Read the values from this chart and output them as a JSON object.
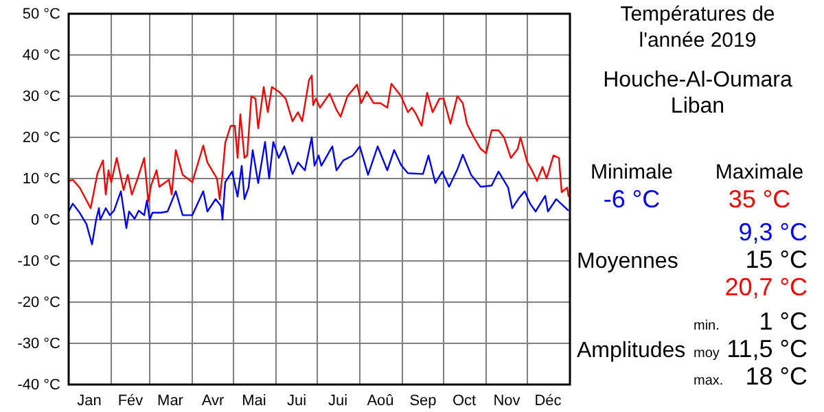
{
  "chart_data": {
    "type": "line",
    "title": "Températures de l'année 2019",
    "subtitle": "Houche-Al-Oumara Liban",
    "xlim": [
      "2019-01-01",
      "2020-01-01"
    ],
    "xticks": [
      {
        "value": "2019-01-01",
        "label": null
      },
      {
        "value": "2019-01-16",
        "label": "Jan"
      },
      {
        "value": "2019-02-01",
        "label": null
      },
      {
        "value": "2019-02-15",
        "label": "Fév"
      },
      {
        "value": "2019-03-01",
        "label": null
      },
      {
        "value": "2019-03-16",
        "label": "Mar"
      },
      {
        "value": "2019-04-01",
        "label": null
      },
      {
        "value": "2019-04-16",
        "label": "Avr"
      },
      {
        "value": "2019-05-01",
        "label": null
      },
      {
        "value": "2019-05-16",
        "label": "Mai"
      },
      {
        "value": "2019-06-01",
        "label": null
      },
      {
        "value": "2019-06-16",
        "label": "Jui"
      },
      {
        "value": "2019-07-01",
        "label": null
      },
      {
        "value": "2019-07-16",
        "label": "Jui"
      },
      {
        "value": "2019-08-01",
        "label": null
      },
      {
        "value": "2019-08-16",
        "label": "Aoû"
      },
      {
        "value": "2019-09-01",
        "label": null
      },
      {
        "value": "2019-09-16",
        "label": "Sep"
      },
      {
        "value": "2019-10-01",
        "label": null
      },
      {
        "value": "2019-10-16",
        "label": "Oct"
      },
      {
        "value": "2019-11-01",
        "label": null
      },
      {
        "value": "2019-11-16",
        "label": "Nov"
      },
      {
        "value": "2019-12-01",
        "label": null
      },
      {
        "value": "2019-12-16",
        "label": "Déc"
      },
      {
        "value": "2020-01-01",
        "label": null
      }
    ],
    "ylim": [
      -40,
      50
    ],
    "yticks": [
      {
        "value": -40,
        "label": "-40 °C"
      },
      {
        "value": -30,
        "label": "-30 °C"
      },
      {
        "value": -20,
        "label": "-20 °C"
      },
      {
        "value": -10,
        "label": "-10 °C"
      },
      {
        "value": 0,
        "label": "0 °C"
      },
      {
        "value": 10,
        "label": "10 °C"
      },
      {
        "value": 20,
        "label": "20 °C"
      },
      {
        "value": 30,
        "label": "30 °C"
      },
      {
        "value": 40,
        "label": "40 °C"
      },
      {
        "value": 50,
        "label": "50 °C"
      }
    ],
    "grid": true,
    "marker": "none",
    "line_style": "solid",
    "series": [
      {
        "color": "#0000ff",
        "x": [
          "2019-01-01",
          "2019-01-04",
          "2019-01-09",
          "2019-01-14",
          "2019-01-18",
          "2019-01-21",
          "2019-01-23",
          "2019-01-24",
          "2019-01-28",
          "2019-01-31",
          "2019-02-03",
          "2019-02-08",
          "2019-02-12",
          "2019-02-14",
          "2019-02-18",
          "2019-02-21",
          "2019-02-25",
          "2019-02-27",
          "2019-03-01",
          "2019-03-03",
          "2019-03-09",
          "2019-03-14",
          "2019-03-20",
          "2019-03-25",
          "2019-04-01",
          "2019-04-09",
          "2019-04-12",
          "2019-04-18",
          "2019-04-22",
          "2019-04-23",
          "2019-04-25",
          "2019-04-30",
          "2019-05-04",
          "2019-05-07",
          "2019-05-09",
          "2019-05-12",
          "2019-05-15",
          "2019-05-19",
          "2019-05-24",
          "2019-05-27",
          "2019-05-30",
          "2019-06-03",
          "2019-06-07",
          "2019-06-13",
          "2019-06-17",
          "2019-06-22",
          "2019-06-27",
          "2019-06-29",
          "2019-07-02",
          "2019-07-04",
          "2019-07-12",
          "2019-07-15",
          "2019-07-20",
          "2019-07-27",
          "2019-08-01",
          "2019-08-07",
          "2019-08-14",
          "2019-08-21",
          "2019-08-26",
          "2019-08-31",
          "2019-09-05",
          "2019-09-16",
          "2019-09-20",
          "2019-09-25",
          "2019-09-30",
          "2019-10-05",
          "2019-10-11",
          "2019-10-15",
          "2019-10-21",
          "2019-10-28",
          "2019-11-05",
          "2019-11-10",
          "2019-11-17",
          "2019-11-20",
          "2019-11-25",
          "2019-11-29",
          "2019-12-03",
          "2019-12-07",
          "2019-12-14",
          "2019-12-16",
          "2019-12-22",
          "2019-12-29",
          "2019-12-31"
        ],
        "values": [
          2,
          3.9,
          1.7,
          -1.1,
          -6,
          0,
          2.8,
          0,
          2.8,
          1.1,
          2.2,
          6.9,
          -2,
          2,
          0.2,
          2.2,
          1.1,
          4.7,
          0,
          1.7,
          1.7,
          2,
          6.9,
          1.1,
          1.1,
          6.9,
          2,
          5,
          3.3,
          0,
          9.1,
          11.7,
          5.6,
          13.1,
          5,
          7.8,
          16.9,
          8.9,
          18.9,
          10,
          18.9,
          15,
          17.8,
          11.1,
          13.9,
          12,
          20,
          13.1,
          15.6,
          13.1,
          17.8,
          12,
          14.4,
          15.6,
          17.8,
          10.9,
          17.8,
          12,
          16.9,
          13.3,
          11.3,
          11.1,
          15.6,
          8.9,
          11.7,
          8,
          12.2,
          15.8,
          10.9,
          8,
          8.3,
          11.7,
          7.8,
          2.8,
          5.3,
          6.9,
          3.9,
          2,
          5.8,
          2,
          5,
          2.8,
          2.2
        ]
      },
      {
        "color": "#ff0000",
        "x": [
          "2019-01-01",
          "2019-01-04",
          "2019-01-09",
          "2019-01-17",
          "2019-01-22",
          "2019-01-26",
          "2019-01-28",
          "2019-01-30",
          "2019-02-01",
          "2019-02-05",
          "2019-02-10",
          "2019-02-13",
          "2019-02-16",
          "2019-02-20",
          "2019-02-25",
          "2019-02-28",
          "2019-03-02",
          "2019-03-06",
          "2019-03-08",
          "2019-03-15",
          "2019-03-17",
          "2019-03-20",
          "2019-03-25",
          "2019-04-01",
          "2019-04-09",
          "2019-04-12",
          "2019-04-19",
          "2019-04-21",
          "2019-04-23",
          "2019-04-25",
          "2019-04-29",
          "2019-05-02",
          "2019-05-04",
          "2019-05-06",
          "2019-05-09",
          "2019-05-11",
          "2019-05-14",
          "2019-05-17",
          "2019-05-19",
          "2019-05-23",
          "2019-05-26",
          "2019-05-29",
          "2019-06-03",
          "2019-06-08",
          "2019-06-13",
          "2019-06-17",
          "2019-06-20",
          "2019-06-25",
          "2019-06-27",
          "2019-06-28",
          "2019-06-30",
          "2019-07-03",
          "2019-07-10",
          "2019-07-15",
          "2019-07-18",
          "2019-07-23",
          "2019-07-30",
          "2019-08-02",
          "2019-08-06",
          "2019-08-11",
          "2019-08-16",
          "2019-08-21",
          "2019-08-24",
          "2019-08-31",
          "2019-09-05",
          "2019-09-08",
          "2019-09-11",
          "2019-09-15",
          "2019-09-19",
          "2019-09-23",
          "2019-09-28",
          "2019-10-01",
          "2019-10-06",
          "2019-10-11",
          "2019-10-15",
          "2019-10-18",
          "2019-10-23",
          "2019-10-28",
          "2019-11-01",
          "2019-11-05",
          "2019-11-10",
          "2019-11-14",
          "2019-11-19",
          "2019-11-24",
          "2019-11-26",
          "2019-12-01",
          "2019-12-04",
          "2019-12-08",
          "2019-12-12",
          "2019-12-15",
          "2019-12-20",
          "2019-12-24",
          "2019-12-26",
          "2019-12-30",
          "2019-12-31"
        ],
        "values": [
          9.4,
          9.7,
          7.8,
          2.8,
          11.3,
          14.4,
          6.1,
          12,
          9.1,
          15,
          7.2,
          10.9,
          6.1,
          9.8,
          15,
          4.4,
          8.3,
          12,
          8,
          9.7,
          6.1,
          16.9,
          10.9,
          9.1,
          18,
          13.9,
          10,
          5,
          11.1,
          18.7,
          22.8,
          22.8,
          15,
          25.6,
          15,
          15.6,
          30,
          29.4,
          22.2,
          32.2,
          26.1,
          32.2,
          31.1,
          29.4,
          23.9,
          26.1,
          23.9,
          33.9,
          35,
          27.8,
          29.4,
          27.2,
          30.6,
          26.7,
          25,
          30,
          32.8,
          28.3,
          31.1,
          28.3,
          28.3,
          27.2,
          33,
          30,
          26.1,
          27.2,
          25.6,
          22.8,
          30.8,
          26.1,
          29.4,
          29.4,
          23.3,
          30,
          28.3,
          23.3,
          20,
          17.2,
          16.1,
          21.7,
          21.7,
          20,
          15,
          17.2,
          20,
          13.9,
          12.2,
          9.4,
          12.8,
          10,
          15.6,
          15,
          6.7,
          7.8,
          5.6
        ]
      }
    ],
    "annotations": [
      "Minimale",
      "Maximale",
      "-6 °C",
      "35 °C",
      "9,3 °C",
      "Moyennes",
      "15 °C",
      "20,7 °C",
      "min.",
      "1 °C",
      "Amplitudes",
      "moy",
      "11,5 °C",
      "max.",
      "18 °C"
    ]
  }
}
